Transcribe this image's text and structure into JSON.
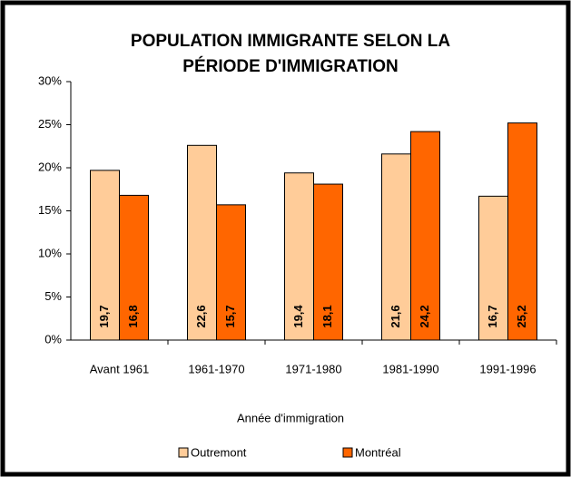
{
  "chart_data": {
    "type": "bar",
    "title": [
      "POPULATION IMMIGRANTE SELON LA",
      "PÉRIODE D'IMMIGRATION"
    ],
    "x_label": "Année d'immigration",
    "categories": [
      "Avant 1961",
      "1961-1970",
      "1971-1980",
      "1981-1990",
      "1991-1996"
    ],
    "series": [
      {
        "name": "Outremont",
        "color": "#ffcc99",
        "values": [
          19.7,
          22.6,
          19.4,
          21.6,
          16.7
        ],
        "value_labels": [
          "19,7",
          "22,6",
          "19,4",
          "21,6",
          "16,7"
        ]
      },
      {
        "name": "Montréal",
        "color": "#ff6600",
        "values": [
          16.8,
          15.7,
          18.1,
          24.2,
          25.2
        ],
        "value_labels": [
          "16,8",
          "15,7",
          "18,1",
          "24,2",
          "25,2"
        ]
      }
    ],
    "ylim": [
      0,
      30
    ],
    "yticks": [
      {
        "value": 0,
        "label": "0%"
      },
      {
        "value": 5,
        "label": "5%"
      },
      {
        "value": 10,
        "label": "10%"
      },
      {
        "value": 15,
        "label": "15%"
      },
      {
        "value": 20,
        "label": "20%"
      },
      {
        "value": 25,
        "label": "25%"
      },
      {
        "value": 30,
        "label": "30%"
      }
    ],
    "legend": "bottom"
  }
}
